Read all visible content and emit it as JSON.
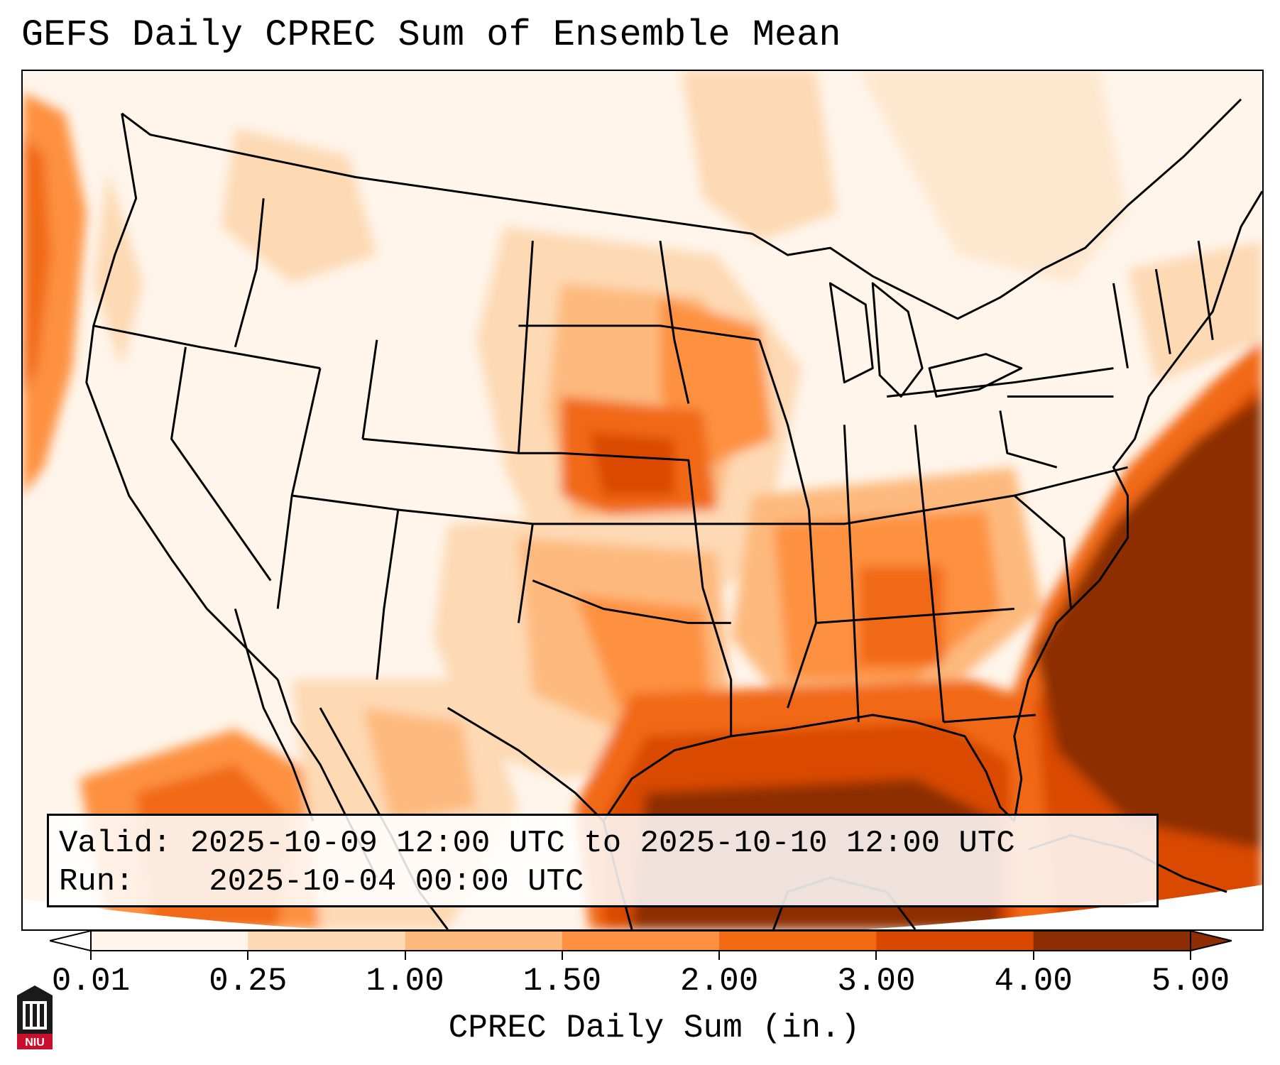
{
  "title": "GEFS Daily CPREC Sum of Ensemble Mean",
  "info": {
    "valid_label": "Valid:",
    "valid_value": "2025-10-09 12:00 UTC to 2025-10-10 12:00 UTC",
    "run_label": "Run:",
    "run_value": "2025-10-04 00:00 UTC"
  },
  "colorbar": {
    "label": "CPREC Daily Sum (in.)",
    "ticks": [
      "0.01",
      "0.25",
      "1.00",
      "1.50",
      "2.00",
      "3.00",
      "4.00",
      "5.00"
    ],
    "colors": [
      "#fff5eb",
      "#fdd9b4",
      "#fdb97d",
      "#fd9141",
      "#f16913",
      "#d94801",
      "#8c2d04"
    ]
  },
  "logo": {
    "text": "NIU",
    "color": "#c8102e"
  },
  "map": {
    "projection": "Lambert Conformal (CONUS)",
    "ocean_color": "#ffffff",
    "border_color": "#000000"
  }
}
